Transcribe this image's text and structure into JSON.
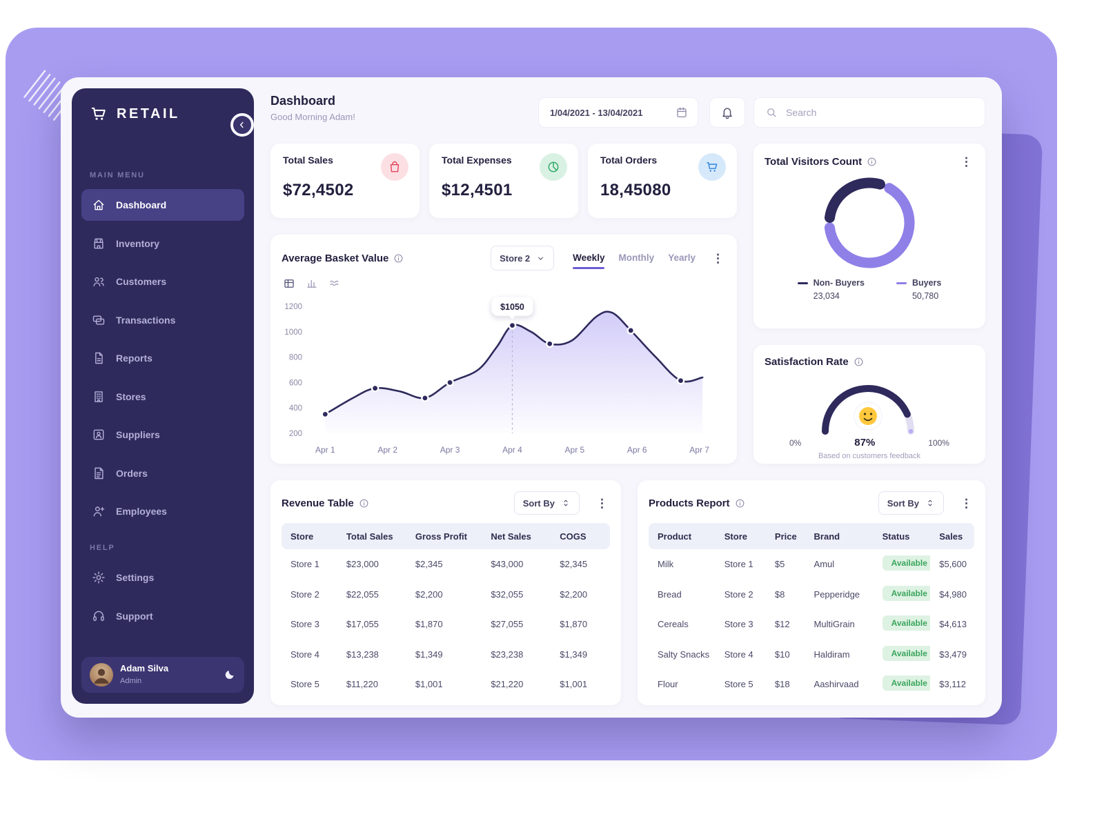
{
  "app": {
    "brand": "Retail"
  },
  "colors": {
    "background": "#a89cf1",
    "sidebar": "#2e2a5c",
    "sidebar_active": "#474186",
    "accent": "#6c5dd3",
    "line": "#2e2a5c",
    "donut_dark": "#2e2a5c",
    "donut_light": "#8f80e8",
    "badge_green_bg": "#def2e3",
    "badge_green_text": "#3ba55d",
    "kpi_red": "#e2445c",
    "kpi_green": "#27a862",
    "kpi_blue": "#3d8be0"
  },
  "sidebar": {
    "sections": {
      "main": "MAIN MENU",
      "help": "HELP"
    },
    "items": [
      {
        "label": "Dashboard",
        "icon": "home-icon",
        "active": true
      },
      {
        "label": "Inventory",
        "icon": "storefront-icon",
        "active": false
      },
      {
        "label": "Customers",
        "icon": "users-icon",
        "active": false
      },
      {
        "label": "Transactions",
        "icon": "transactions-icon",
        "active": false
      },
      {
        "label": "Reports",
        "icon": "report-icon",
        "active": false
      },
      {
        "label": "Stores",
        "icon": "building-icon",
        "active": false
      },
      {
        "label": "Suppliers",
        "icon": "supplier-icon",
        "active": false
      },
      {
        "label": "Orders",
        "icon": "orders-icon",
        "active": false
      },
      {
        "label": "Employees",
        "icon": "employee-icon",
        "active": false
      }
    ],
    "help_items": [
      {
        "label": "Settings",
        "icon": "gear-icon",
        "active": false
      },
      {
        "label": "Support",
        "icon": "headset-icon",
        "active": false
      }
    ],
    "user": {
      "name": "Adam Silva",
      "role": "Admin"
    }
  },
  "header": {
    "title": "Dashboard",
    "greeting": "Good Morning Adam!",
    "date_range": "1/04/2021 - 13/04/2021",
    "search_placeholder": "Search"
  },
  "kpis": [
    {
      "label": "Total Sales",
      "value": "$72,4502",
      "icon": "bag-icon",
      "fg": "#e2445c",
      "bg": "#fcdfe3"
    },
    {
      "label": "Total Expenses",
      "value": "$12,4501",
      "icon": "pie-icon",
      "fg": "#27a862",
      "bg": "#d9f1e3"
    },
    {
      "label": "Total Orders",
      "value": "18,45080",
      "icon": "cart-icon",
      "fg": "#3d8be0",
      "bg": "#d6e9fb"
    }
  ],
  "visitors": {
    "title": "Total Visitors Count"
  },
  "basket": {
    "title": "Average Basket Value",
    "store_filter": "Store 2",
    "tabs": [
      "Weekly",
      "Monthly",
      "Yearly"
    ],
    "active_tab": "Weekly",
    "view_icons": [
      "table-view-icon",
      "bar-chart-view-icon",
      "area-chart-view-icon"
    ]
  },
  "satisfaction": {
    "title": "Satisfaction Rate"
  },
  "revenue_table": {
    "title": "Revenue Table",
    "sort_label": "Sort By",
    "columns": [
      "Store",
      "Total Sales",
      "Gross Profit",
      "Net Sales",
      "COGS"
    ],
    "rows": [
      [
        "Store 1",
        "$23,000",
        "$2,345",
        "$43,000",
        "$2,345"
      ],
      [
        "Store 2",
        "$22,055",
        "$2,200",
        "$32,055",
        "$2,200"
      ],
      [
        "Store 3",
        "$17,055",
        "$1,870",
        "$27,055",
        "$1,870"
      ],
      [
        "Store 4",
        "$13,238",
        "$1,349",
        "$23,238",
        "$1,349"
      ],
      [
        "Store 5",
        "$11,220",
        "$1,001",
        "$21,220",
        "$1,001"
      ]
    ]
  },
  "products_report": {
    "title": "Products Report",
    "sort_label": "Sort By",
    "columns": [
      "Product",
      "Store",
      "Price",
      "Brand",
      "Status",
      "Sales"
    ],
    "rows": [
      [
        "Milk",
        "Store 1",
        "$5",
        "Amul",
        "Available",
        "$5,600"
      ],
      [
        "Bread",
        "Store 2",
        "$8",
        "Pepperidge",
        "Available",
        "$4,980"
      ],
      [
        "Cereals",
        "Store 3",
        "$12",
        "MultiGrain",
        "Available",
        "$4,613"
      ],
      [
        "Salty Snacks",
        "Store 4",
        "$10",
        "Haldiram",
        "Available",
        "$3,479"
      ],
      [
        "Flour",
        "Store 5",
        "$18",
        "Aashirvaad",
        "Available",
        "$3,112"
      ]
    ]
  },
  "chart_data": [
    {
      "id": "average_basket_value",
      "type": "line",
      "title": "Average Basket Value",
      "x_ticks": [
        "Apr 1",
        "Apr 2",
        "Apr 3",
        "Apr 4",
        "Apr 5",
        "Apr 6",
        "Apr 7"
      ],
      "y_ticks": [
        200,
        400,
        600,
        800,
        1000,
        1200
      ],
      "ylim": [
        200,
        1200
      ],
      "unit": "$",
      "points": [
        {
          "x": 1.0,
          "y": 350,
          "dot": true
        },
        {
          "x": 1.45,
          "y": 480,
          "dot": false
        },
        {
          "x": 1.8,
          "y": 555,
          "dot": true
        },
        {
          "x": 2.2,
          "y": 530,
          "dot": false
        },
        {
          "x": 2.6,
          "y": 478,
          "dot": true
        },
        {
          "x": 3.0,
          "y": 600,
          "dot": true
        },
        {
          "x": 3.45,
          "y": 700,
          "dot": false
        },
        {
          "x": 3.75,
          "y": 880,
          "dot": false
        },
        {
          "x": 4.0,
          "y": 1050,
          "dot": true
        },
        {
          "x": 4.3,
          "y": 1000,
          "dot": false
        },
        {
          "x": 4.6,
          "y": 905,
          "dot": true
        },
        {
          "x": 4.95,
          "y": 930,
          "dot": false
        },
        {
          "x": 5.35,
          "y": 1120,
          "dot": false
        },
        {
          "x": 5.6,
          "y": 1150,
          "dot": false
        },
        {
          "x": 5.9,
          "y": 1010,
          "dot": true
        },
        {
          "x": 6.3,
          "y": 800,
          "dot": false
        },
        {
          "x": 6.7,
          "y": 615,
          "dot": true
        },
        {
          "x": 7.05,
          "y": 640,
          "dot": false
        }
      ],
      "annotation": {
        "x": 4.0,
        "label": "$1050"
      }
    },
    {
      "id": "total_visitors",
      "type": "donut",
      "title": "Total Visitors Count",
      "slices": [
        {
          "label": "Non- Buyers",
          "value": 23034,
          "display": "23,034",
          "color": "#2e2a5c"
        },
        {
          "label": "Buyers",
          "value": 50780,
          "display": "50,780",
          "color": "#8f80e8"
        }
      ]
    },
    {
      "id": "satisfaction_rate",
      "type": "gauge",
      "value_pct": 87,
      "display": "87%",
      "min_label": "0%",
      "max_label": "100%",
      "note": "Based on customers feedback"
    }
  ]
}
